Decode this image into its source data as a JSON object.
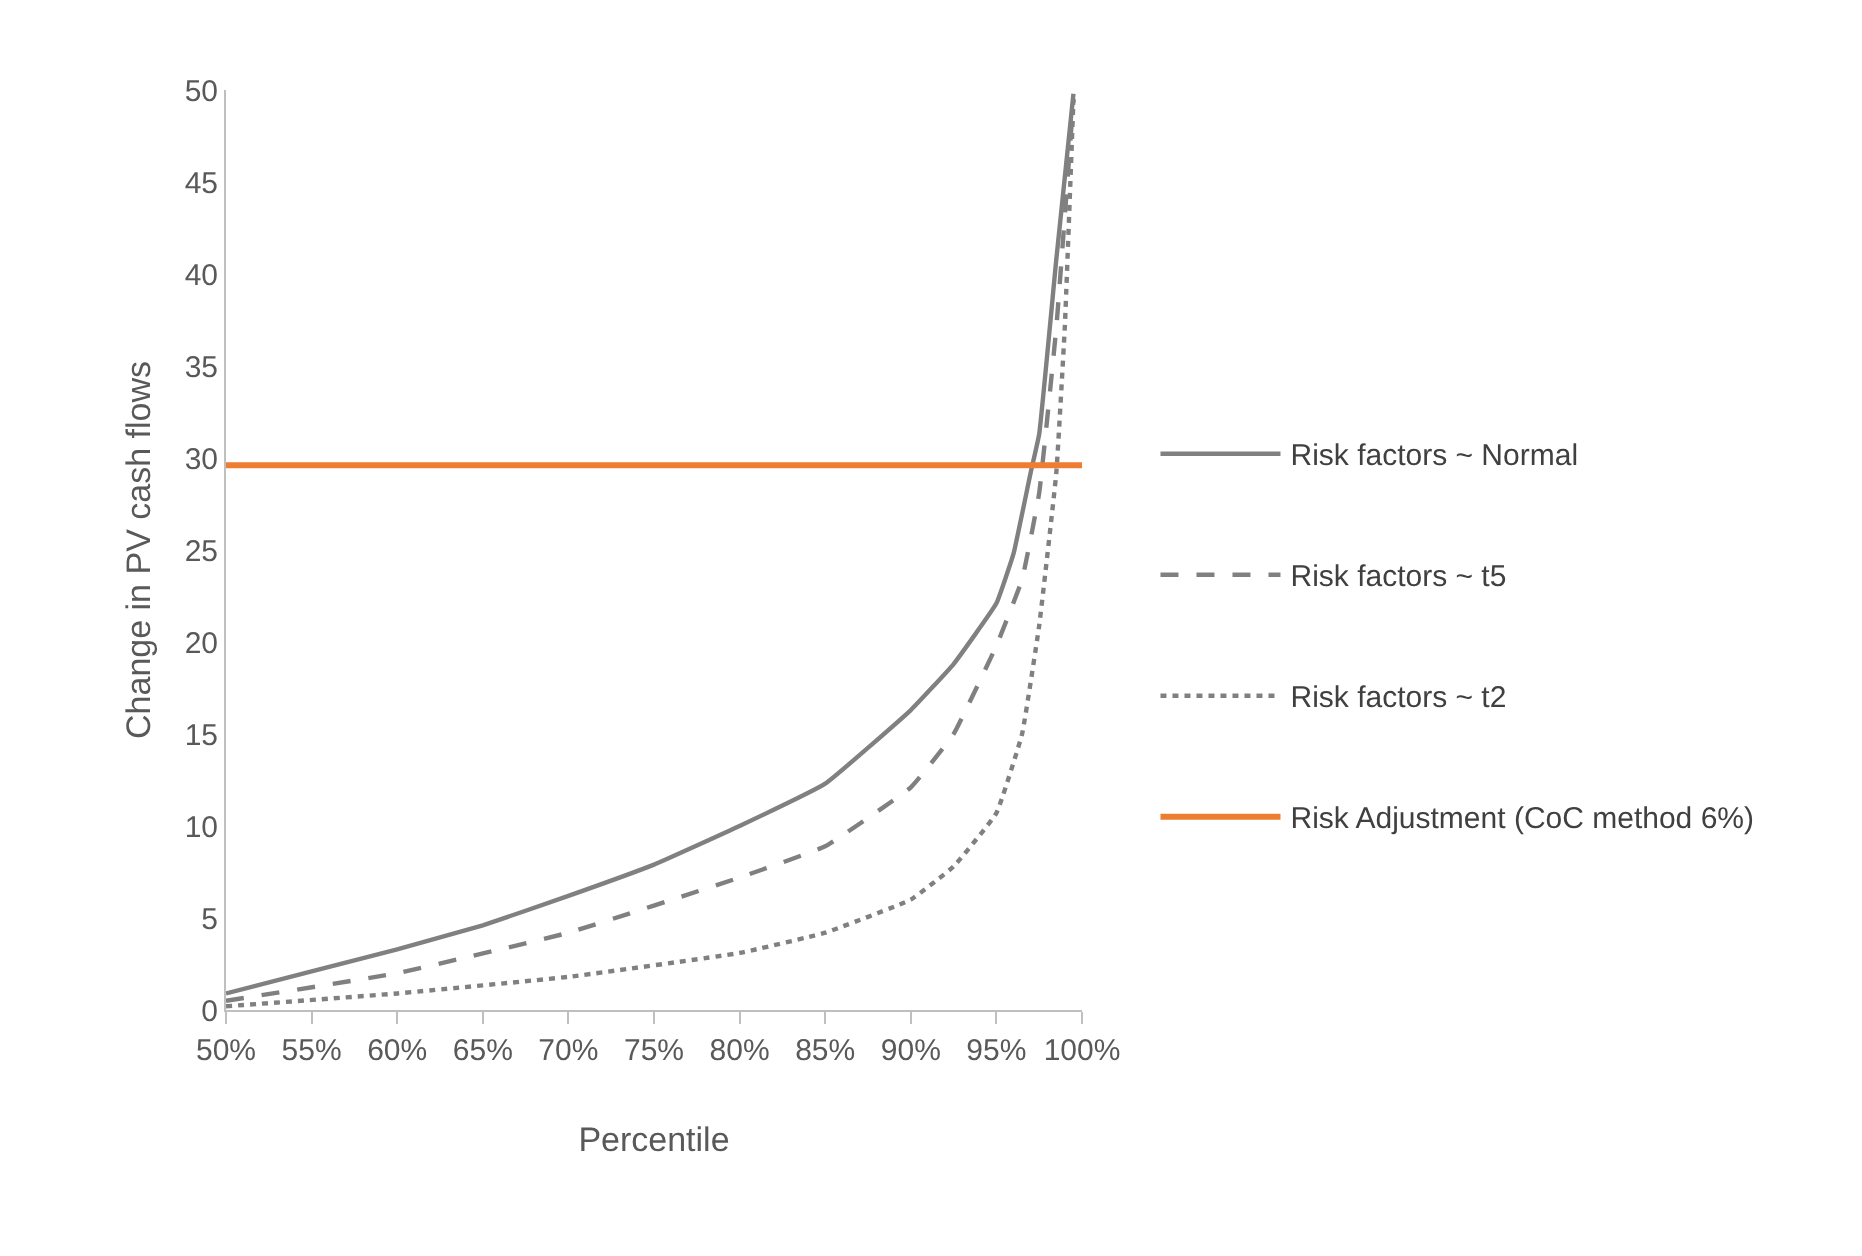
{
  "chart_data": {
    "type": "line",
    "xlabel": "Percentile",
    "ylabel": "Change in PV cash flows",
    "xlim": [
      0.5,
      1.0
    ],
    "ylim": [
      0,
      50
    ],
    "xticks": [
      {
        "value": 0.5,
        "label": "50%"
      },
      {
        "value": 0.55,
        "label": "55%"
      },
      {
        "value": 0.6,
        "label": "60%"
      },
      {
        "value": 0.65,
        "label": "65%"
      },
      {
        "value": 0.7,
        "label": "70%"
      },
      {
        "value": 0.75,
        "label": "75%"
      },
      {
        "value": 0.8,
        "label": "80%"
      },
      {
        "value": 0.85,
        "label": "85%"
      },
      {
        "value": 0.9,
        "label": "90%"
      },
      {
        "value": 0.95,
        "label": "95%"
      },
      {
        "value": 1.0,
        "label": "100%"
      }
    ],
    "yticks": [
      0,
      5,
      10,
      15,
      20,
      25,
      30,
      35,
      40,
      45,
      50
    ],
    "legend": "right",
    "series": [
      {
        "name": "Risk factors ~ Normal",
        "color": "#808080",
        "line_style": "solid",
        "x": [
          0.5,
          0.55,
          0.6,
          0.65,
          0.7,
          0.75,
          0.8,
          0.85,
          0.9,
          0.925,
          0.95,
          0.96,
          0.97,
          0.975,
          0.985,
          0.995
        ],
        "values": [
          0.9,
          2.1,
          3.3,
          4.6,
          6.2,
          7.9,
          10.0,
          12.3,
          16.3,
          18.8,
          22.1,
          24.8,
          29.2,
          31.3,
          40.8,
          49.8
        ]
      },
      {
        "name": "Risk factors ~ t5",
        "color": "#808080",
        "line_style": "dashed",
        "x": [
          0.5,
          0.6,
          0.7,
          0.8,
          0.85,
          0.9,
          0.925,
          0.95,
          0.965,
          0.975,
          0.985,
          0.995
        ],
        "values": [
          0.5,
          2.0,
          4.2,
          7.2,
          8.9,
          12.1,
          15.0,
          19.8,
          23.4,
          28.1,
          37.1,
          49.5
        ]
      },
      {
        "name": "Risk factors ~ t2",
        "color": "#808080",
        "line_style": "dotted",
        "x": [
          0.5,
          0.6,
          0.7,
          0.8,
          0.85,
          0.9,
          0.925,
          0.95,
          0.965,
          0.975,
          0.985,
          0.99,
          0.995
        ],
        "values": [
          0.2,
          0.9,
          1.8,
          3.1,
          4.2,
          6.0,
          7.8,
          10.7,
          15.0,
          20.9,
          29.2,
          37.2,
          49.5
        ]
      },
      {
        "name": "Risk Adjustment (CoC method 6%)",
        "color": "#ed7d31",
        "line_style": "solid",
        "x": [
          0.5,
          1.0
        ],
        "values": [
          29.6,
          29.6
        ]
      }
    ]
  }
}
